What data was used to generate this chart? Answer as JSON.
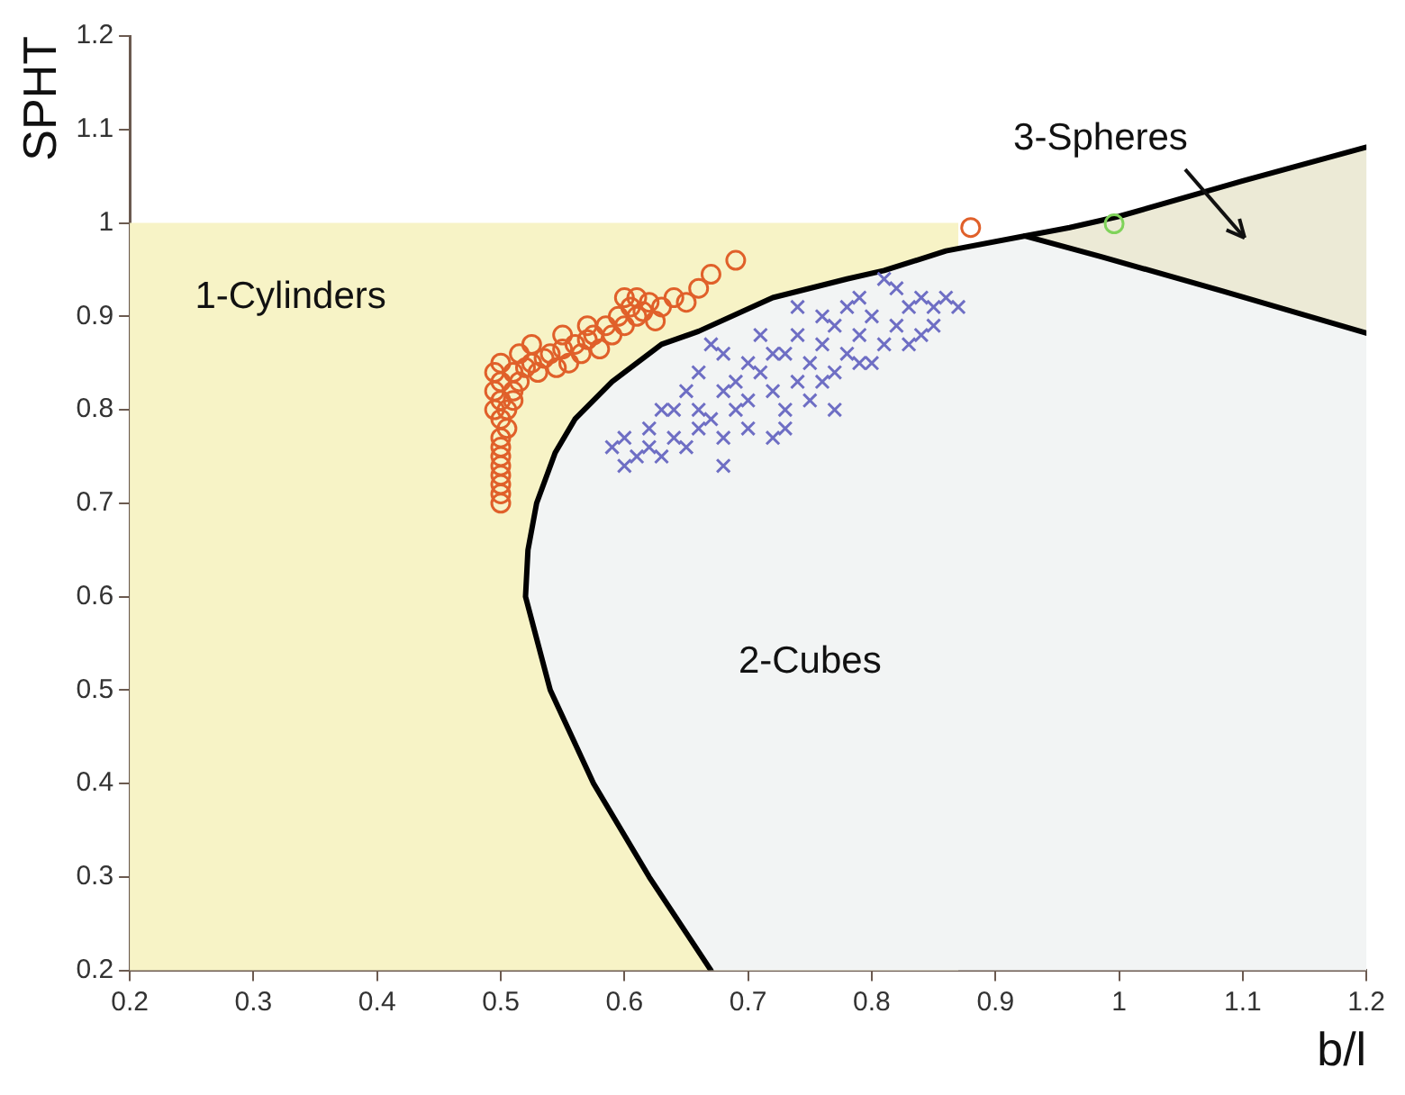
{
  "chart_data": {
    "type": "scatter",
    "xlabel": "b/l",
    "ylabel": "SPHT",
    "xlim": [
      0.2,
      1.2
    ],
    "xticks": [
      0.2,
      0.3,
      0.4,
      0.5,
      0.6,
      0.7,
      0.8,
      0.9,
      1,
      1.1,
      1.2
    ],
    "ylim": [
      0.2,
      1.2
    ],
    "yticks": [
      0.2,
      0.3,
      0.4,
      0.5,
      0.6,
      0.7,
      0.8,
      0.9,
      1,
      1.1,
      1.2
    ],
    "annotations": [
      "1-Cylinders",
      "2-Cubes",
      "3-Spheres"
    ],
    "series": [
      {
        "type": "area",
        "color": "#f7f3c6",
        "x": [
          0.2,
          0.87
        ],
        "values": [
          1,
          1
        ]
      },
      {
        "type": "line",
        "color": "#000000",
        "marker": "none",
        "x": [
          0.67,
          0.62,
          0.575,
          0.54,
          0.52,
          0.522,
          0.529,
          0.544,
          0.56,
          0.59,
          0.63,
          0.66,
          0.72,
          0.78,
          0.81,
          0.86,
          0.924,
          0.96,
          1.0,
          1.1,
          1.2
        ],
        "values": [
          0.2,
          0.3,
          0.4,
          0.5,
          0.6,
          0.65,
          0.7,
          0.754,
          0.79,
          0.83,
          0.87,
          0.884,
          0.92,
          0.94,
          0.949,
          0.97,
          0.986,
          0.995,
          1.007,
          1.045,
          1.081
        ]
      },
      {
        "type": "line",
        "color": "#000000",
        "marker": "none",
        "x": [
          0.924,
          0.985,
          1.084,
          1.2
        ],
        "values": [
          0.986,
          0.964,
          0.927,
          0.882
        ],
        "lower": [
          0.986,
          0.964,
          0.927,
          0.882
        ],
        "upper": [
          0.986,
          1.004,
          1.04,
          1.081
        ]
      },
      {
        "type": "scatter",
        "color": "#e0602a",
        "marker": "circle",
        "x": [
          0.5,
          0.5,
          0.5,
          0.5,
          0.5,
          0.5,
          0.5,
          0.5,
          0.505,
          0.5,
          0.495,
          0.505,
          0.5,
          0.51,
          0.495,
          0.51,
          0.5,
          0.515,
          0.495,
          0.51,
          0.52,
          0.5,
          0.525,
          0.53,
          0.535,
          0.54,
          0.545,
          0.55,
          0.555,
          0.56,
          0.565,
          0.57,
          0.575,
          0.58,
          0.585,
          0.59,
          0.595,
          0.6,
          0.605,
          0.61,
          0.615,
          0.62,
          0.625,
          0.63,
          0.64,
          0.61,
          0.66,
          0.67,
          0.69,
          0.88,
          0.515,
          0.525,
          0.55,
          0.57,
          0.6,
          0.65
        ],
        "values": [
          0.7,
          0.71,
          0.72,
          0.73,
          0.74,
          0.75,
          0.76,
          0.77,
          0.78,
          0.79,
          0.8,
          0.8,
          0.81,
          0.81,
          0.82,
          0.82,
          0.83,
          0.83,
          0.84,
          0.84,
          0.845,
          0.85,
          0.85,
          0.84,
          0.855,
          0.86,
          0.845,
          0.865,
          0.85,
          0.87,
          0.86,
          0.875,
          0.88,
          0.865,
          0.89,
          0.88,
          0.9,
          0.89,
          0.91,
          0.9,
          0.905,
          0.915,
          0.895,
          0.91,
          0.92,
          0.92,
          0.93,
          0.945,
          0.96,
          0.995,
          0.86,
          0.87,
          0.88,
          0.89,
          0.92,
          0.915
        ]
      },
      {
        "type": "scatter",
        "color": "#6e6ec4",
        "marker": "cross",
        "x": [
          0.59,
          0.6,
          0.61,
          0.6,
          0.62,
          0.63,
          0.62,
          0.64,
          0.65,
          0.66,
          0.64,
          0.66,
          0.67,
          0.68,
          0.69,
          0.7,
          0.7,
          0.68,
          0.72,
          0.71,
          0.73,
          0.74,
          0.75,
          0.73,
          0.75,
          0.76,
          0.77,
          0.78,
          0.77,
          0.79,
          0.8,
          0.8,
          0.81,
          0.82,
          0.83,
          0.84,
          0.85,
          0.86,
          0.87,
          0.82,
          0.79,
          0.76,
          0.74,
          0.72,
          0.7,
          0.68,
          0.66,
          0.65,
          0.63,
          0.67,
          0.71,
          0.78,
          0.81,
          0.84,
          0.69,
          0.73,
          0.72,
          0.76,
          0.79,
          0.83,
          0.74,
          0.68,
          0.85,
          0.77
        ],
        "values": [
          0.76,
          0.74,
          0.75,
          0.77,
          0.76,
          0.75,
          0.78,
          0.77,
          0.76,
          0.78,
          0.8,
          0.8,
          0.79,
          0.77,
          0.8,
          0.78,
          0.81,
          0.82,
          0.82,
          0.84,
          0.8,
          0.83,
          0.81,
          0.86,
          0.85,
          0.87,
          0.84,
          0.86,
          0.89,
          0.88,
          0.85,
          0.9,
          0.87,
          0.89,
          0.91,
          0.88,
          0.91,
          0.92,
          0.91,
          0.93,
          0.92,
          0.9,
          0.88,
          0.86,
          0.85,
          0.86,
          0.84,
          0.82,
          0.8,
          0.87,
          0.88,
          0.91,
          0.94,
          0.92,
          0.83,
          0.78,
          0.77,
          0.83,
          0.85,
          0.87,
          0.91,
          0.74,
          0.89,
          0.8
        ]
      },
      {
        "type": "scatter",
        "color": "#7fd35a",
        "marker": "circle",
        "x": [
          0.996
        ],
        "values": [
          0.999
        ]
      }
    ]
  }
}
